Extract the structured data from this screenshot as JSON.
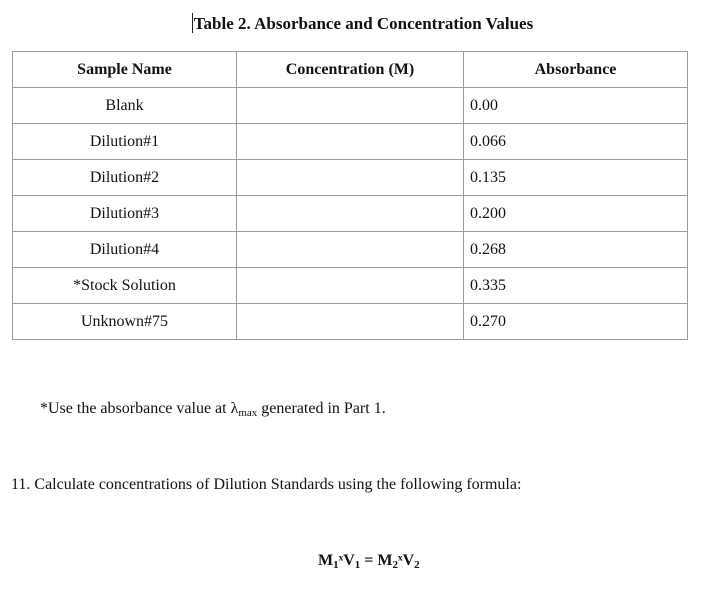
{
  "title": "Table 2. Absorbance and Concentration Values",
  "table": {
    "headers": [
      "Sample Name",
      "Concentration (M)",
      "Absorbance"
    ],
    "rows": [
      {
        "name": "Blank",
        "concentration": "",
        "absorbance": "0.00"
      },
      {
        "name": "Dilution#1",
        "concentration": "",
        "absorbance": "0.066"
      },
      {
        "name": "Dilution#2",
        "concentration": "",
        "absorbance": "0.135"
      },
      {
        "name": "Dilution#3",
        "concentration": "",
        "absorbance": "0.200"
      },
      {
        "name": "Dilution#4",
        "concentration": "",
        "absorbance": "0.268"
      },
      {
        "name": "*Stock Solution",
        "concentration": "",
        "absorbance": "0.335"
      },
      {
        "name": "Unknown#75",
        "concentration": "",
        "absorbance": "0.270"
      }
    ]
  },
  "note": {
    "prefix": "*Use the absorbance value at λ",
    "subscript": "max",
    "suffix": " generated in Part 1."
  },
  "question": "11. Calculate concentrations of Dilution Standards using the following formula:",
  "formula": {
    "m1": "M",
    "m1_sub": "1",
    "times1": "ˣ",
    "v1": "V",
    "v1_sub": "1",
    "equals": " = ",
    "m2": "M",
    "m2_sub": "2",
    "times2": "ˣ",
    "v2": "V",
    "v2_sub": "2"
  }
}
